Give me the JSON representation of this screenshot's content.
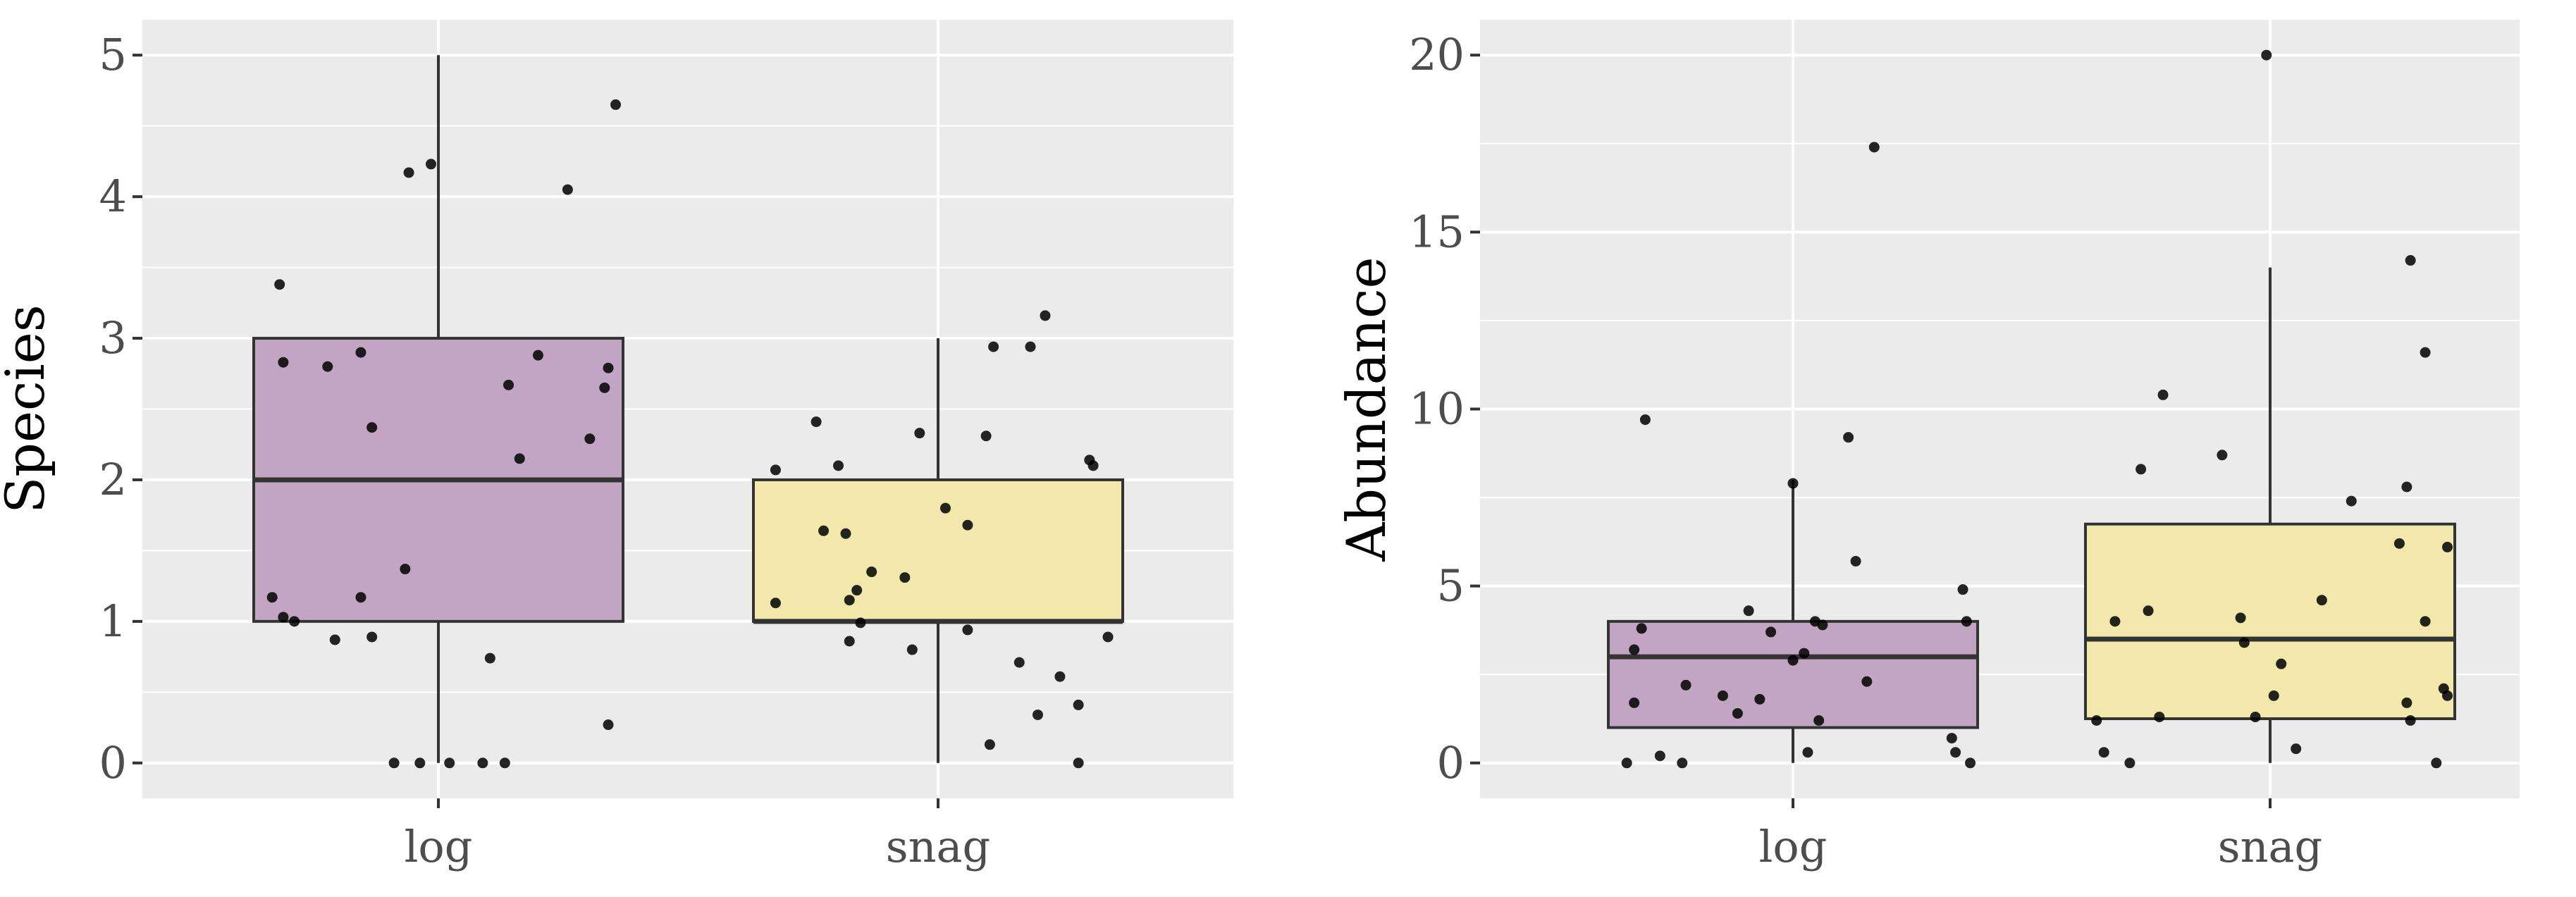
{
  "colors": {
    "log": "#c2a5c2",
    "snag": "#f2e8ab",
    "panel": "#ebebeb"
  },
  "chart_data": [
    {
      "type": "box",
      "title": "",
      "xlabel": "",
      "ylabel": "Species",
      "ylim": [
        -0.25,
        5.25
      ],
      "yticks": [
        0,
        1,
        2,
        3,
        4,
        5
      ],
      "ytick_labels": [
        "0",
        "1",
        "2",
        "3",
        "4",
        "5"
      ],
      "categories": [
        "log",
        "snag"
      ],
      "boxes": [
        {
          "name": "log",
          "whisker_low": 0,
          "q1": 1,
          "median": 2,
          "q3": 3,
          "whisker_high": 5
        },
        {
          "name": "snag",
          "whisker_low": 0,
          "q1": 1,
          "median": 1,
          "q3": 2,
          "whisker_high": 3
        }
      ],
      "points": [
        [
          {
            "dx": -0.43,
            "y": 3.38
          },
          {
            "dx": -0.42,
            "y": 2.83
          },
          {
            "dx": -0.3,
            "y": 2.8
          },
          {
            "dx": -0.21,
            "y": 2.9
          },
          {
            "dx": -0.18,
            "y": 2.37
          },
          {
            "dx": -0.08,
            "y": 4.17
          },
          {
            "dx": -0.02,
            "y": 4.23
          },
          {
            "dx": -0.45,
            "y": 1.17
          },
          {
            "dx": -0.42,
            "y": 1.03
          },
          {
            "dx": -0.39,
            "y": 1.0
          },
          {
            "dx": -0.28,
            "y": 0.87
          },
          {
            "dx": -0.21,
            "y": 1.17
          },
          {
            "dx": -0.18,
            "y": 0.89
          },
          {
            "dx": -0.09,
            "y": 1.37
          },
          {
            "dx": -0.12,
            "y": 0.0
          },
          {
            "dx": -0.05,
            "y": 0.0
          },
          {
            "dx": 0.03,
            "y": 0.0
          },
          {
            "dx": 0.12,
            "y": 0.0
          },
          {
            "dx": 0.18,
            "y": 0.0
          },
          {
            "dx": 0.14,
            "y": 0.74
          },
          {
            "dx": 0.19,
            "y": 2.67
          },
          {
            "dx": 0.22,
            "y": 2.15
          },
          {
            "dx": 0.27,
            "y": 2.88
          },
          {
            "dx": 0.35,
            "y": 4.05
          },
          {
            "dx": 0.41,
            "y": 2.29
          },
          {
            "dx": 0.45,
            "y": 2.65
          },
          {
            "dx": 0.46,
            "y": 2.79
          },
          {
            "dx": 0.48,
            "y": 4.65
          },
          {
            "dx": 0.46,
            "y": 0.27
          }
        ],
        [
          {
            "dx": -0.44,
            "y": 2.07
          },
          {
            "dx": -0.44,
            "y": 1.13
          },
          {
            "dx": -0.33,
            "y": 2.41
          },
          {
            "dx": -0.31,
            "y": 1.64
          },
          {
            "dx": -0.27,
            "y": 2.1
          },
          {
            "dx": -0.25,
            "y": 1.62
          },
          {
            "dx": -0.24,
            "y": 1.15
          },
          {
            "dx": -0.22,
            "y": 1.22
          },
          {
            "dx": -0.24,
            "y": 0.86
          },
          {
            "dx": -0.21,
            "y": 0.99
          },
          {
            "dx": -0.18,
            "y": 1.35
          },
          {
            "dx": -0.09,
            "y": 1.31
          },
          {
            "dx": -0.07,
            "y": 0.8
          },
          {
            "dx": -0.05,
            "y": 2.33
          },
          {
            "dx": 0.02,
            "y": 1.8
          },
          {
            "dx": 0.08,
            "y": 1.68
          },
          {
            "dx": 0.13,
            "y": 2.31
          },
          {
            "dx": 0.08,
            "y": 0.94
          },
          {
            "dx": 0.15,
            "y": 2.94
          },
          {
            "dx": 0.25,
            "y": 2.94
          },
          {
            "dx": 0.29,
            "y": 3.16
          },
          {
            "dx": 0.22,
            "y": 0.71
          },
          {
            "dx": 0.14,
            "y": 0.13
          },
          {
            "dx": 0.27,
            "y": 0.34
          },
          {
            "dx": 0.33,
            "y": 0.61
          },
          {
            "dx": 0.38,
            "y": 0.41
          },
          {
            "dx": 0.38,
            "y": 0.0
          },
          {
            "dx": 0.41,
            "y": 2.14
          },
          {
            "dx": 0.42,
            "y": 2.1
          },
          {
            "dx": 0.46,
            "y": 0.89
          }
        ]
      ]
    },
    {
      "type": "box",
      "title": "",
      "xlabel": "",
      "ylabel": "Abundance",
      "ylim": [
        -1.0,
        21.0
      ],
      "yticks": [
        0,
        5,
        10,
        15,
        20
      ],
      "ytick_labels": [
        "0",
        "5",
        "10",
        "15",
        "20"
      ],
      "categories": [
        "log",
        "snag"
      ],
      "boxes": [
        {
          "name": "log",
          "whisker_low": 0,
          "q1": 1,
          "median": 3,
          "q3": 4,
          "whisker_high": 8
        },
        {
          "name": "snag",
          "whisker_low": 0,
          "q1": 1.25,
          "median": 3.5,
          "q3": 6.75,
          "whisker_high": 14
        }
      ],
      "points": [
        [
          {
            "dx": -0.45,
            "y": 0.0
          },
          {
            "dx": -0.43,
            "y": 3.2
          },
          {
            "dx": -0.43,
            "y": 1.7
          },
          {
            "dx": -0.41,
            "y": 3.8
          },
          {
            "dx": -0.4,
            "y": 9.7
          },
          {
            "dx": -0.36,
            "y": 0.2
          },
          {
            "dx": -0.29,
            "y": 2.2
          },
          {
            "dx": -0.3,
            "y": 0.0
          },
          {
            "dx": -0.19,
            "y": 1.9
          },
          {
            "dx": -0.15,
            "y": 1.4
          },
          {
            "dx": -0.12,
            "y": 4.3
          },
          {
            "dx": -0.09,
            "y": 1.8
          },
          {
            "dx": -0.06,
            "y": 3.7
          },
          {
            "dx": 0.0,
            "y": 7.9
          },
          {
            "dx": 0.0,
            "y": 2.9
          },
          {
            "dx": 0.03,
            "y": 3.1
          },
          {
            "dx": 0.04,
            "y": 0.3
          },
          {
            "dx": 0.06,
            "y": 4.0
          },
          {
            "dx": 0.08,
            "y": 3.9
          },
          {
            "dx": 0.07,
            "y": 1.2
          },
          {
            "dx": 0.15,
            "y": 9.2
          },
          {
            "dx": 0.17,
            "y": 5.7
          },
          {
            "dx": 0.2,
            "y": 2.3
          },
          {
            "dx": 0.22,
            "y": 17.4
          },
          {
            "dx": 0.43,
            "y": 0.7
          },
          {
            "dx": 0.44,
            "y": 0.3
          },
          {
            "dx": 0.46,
            "y": 4.9
          },
          {
            "dx": 0.47,
            "y": 4.0
          },
          {
            "dx": 0.48,
            "y": 0.0
          }
        ],
        [
          {
            "dx": -0.47,
            "y": 1.2
          },
          {
            "dx": -0.45,
            "y": 0.3
          },
          {
            "dx": -0.42,
            "y": 4.0
          },
          {
            "dx": -0.38,
            "y": 0.0
          },
          {
            "dx": -0.35,
            "y": 8.3
          },
          {
            "dx": -0.33,
            "y": 4.3
          },
          {
            "dx": -0.3,
            "y": 1.3
          },
          {
            "dx": -0.29,
            "y": 10.4
          },
          {
            "dx": -0.13,
            "y": 8.7
          },
          {
            "dx": -0.08,
            "y": 4.1
          },
          {
            "dx": -0.07,
            "y": 3.4
          },
          {
            "dx": -0.04,
            "y": 1.3
          },
          {
            "dx": -0.01,
            "y": 20.0
          },
          {
            "dx": 0.01,
            "y": 1.9
          },
          {
            "dx": 0.03,
            "y": 2.8
          },
          {
            "dx": 0.07,
            "y": 0.4
          },
          {
            "dx": 0.14,
            "y": 4.6
          },
          {
            "dx": 0.22,
            "y": 7.4
          },
          {
            "dx": 0.35,
            "y": 6.2
          },
          {
            "dx": 0.37,
            "y": 7.8
          },
          {
            "dx": 0.37,
            "y": 1.7
          },
          {
            "dx": 0.38,
            "y": 1.2
          },
          {
            "dx": 0.38,
            "y": 14.2
          },
          {
            "dx": 0.42,
            "y": 11.6
          },
          {
            "dx": 0.42,
            "y": 4.0
          },
          {
            "dx": 0.45,
            "y": 0.0
          },
          {
            "dx": 0.47,
            "y": 2.1
          },
          {
            "dx": 0.48,
            "y": 1.9
          },
          {
            "dx": 0.48,
            "y": 6.1
          }
        ]
      ]
    }
  ]
}
